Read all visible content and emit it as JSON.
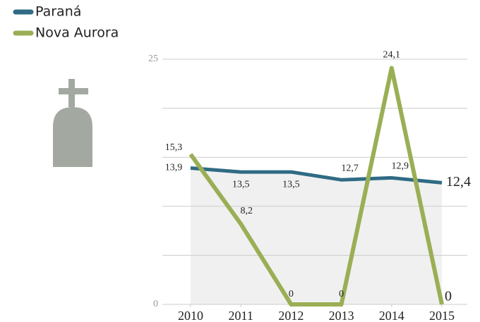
{
  "chart_data": {
    "type": "line",
    "categories": [
      "2010",
      "2011",
      "2012",
      "2013",
      "2014",
      "2015"
    ],
    "series": [
      {
        "name": "Paraná",
        "color": "#2f6b84",
        "values": [
          13.9,
          13.5,
          13.5,
          12.7,
          12.9,
          12.4
        ],
        "value_labels": [
          "13,9",
          "13,5",
          "13,5",
          "12,7",
          "12,9",
          "12,4"
        ],
        "area": true
      },
      {
        "name": "Nova Aurora",
        "color": "#9aaf55",
        "values": [
          15.3,
          8.2,
          0,
          0,
          24.1,
          0
        ],
        "value_labels": [
          "15,3",
          "8,2",
          "0",
          "0",
          "24,1",
          "0"
        ]
      }
    ],
    "ylim": [
      0,
      25
    ],
    "yticks": [
      0,
      25
    ],
    "minor_yticks": [
      5,
      10,
      15,
      20
    ],
    "grid": true,
    "legend": "top-left"
  }
}
